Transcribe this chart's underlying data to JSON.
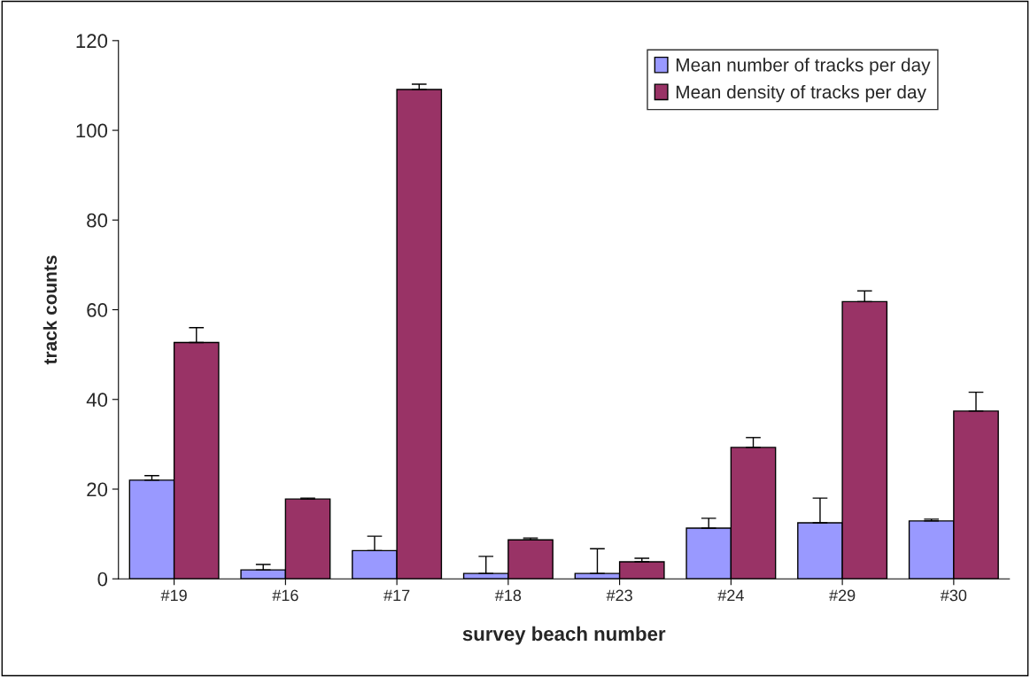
{
  "chart_data": {
    "type": "bar",
    "xlabel": "survey beach number",
    "ylabel": "track counts",
    "categories": [
      "#19",
      "#16",
      "#17",
      "#18",
      "#23",
      "#24",
      "#29",
      "#30"
    ],
    "series": [
      {
        "name": "Mean number of tracks per day",
        "color": "#9999ff",
        "values": [
          22.0,
          2.0,
          6.3,
          1.2,
          1.2,
          11.3,
          12.5,
          12.9
        ],
        "errors": [
          [
            22.0,
            23.0
          ],
          [
            2.0,
            3.2
          ],
          [
            6.3,
            9.5
          ],
          [
            1.2,
            5.0
          ],
          [
            1.2,
            6.7
          ],
          [
            11.3,
            13.5
          ],
          [
            12.5,
            18.0
          ],
          [
            12.9,
            13.3
          ]
        ]
      },
      {
        "name": "Mean density of tracks per day",
        "color": "#993366",
        "values": [
          52.7,
          17.8,
          109.1,
          8.7,
          3.8,
          29.3,
          61.8,
          37.4
        ],
        "errors": [
          [
            52.7,
            56.0
          ],
          [
            17.8,
            18.0
          ],
          [
            109.1,
            110.3
          ],
          [
            8.7,
            9.1
          ],
          [
            3.8,
            4.6
          ],
          [
            29.3,
            31.5
          ],
          [
            61.8,
            64.2
          ],
          [
            37.4,
            41.6
          ]
        ]
      }
    ],
    "ylim": [
      0,
      120
    ],
    "yticks": [
      0,
      20,
      40,
      60,
      80,
      100,
      120
    ],
    "grid": false,
    "legend": "top right"
  }
}
